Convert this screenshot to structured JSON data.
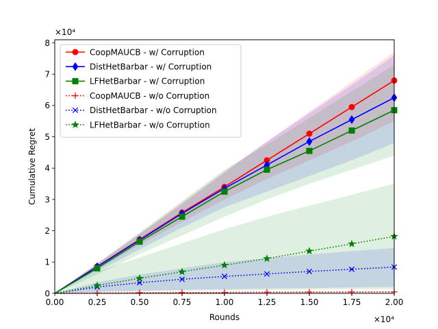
{
  "chart_data": {
    "type": "line",
    "xlabel": "Rounds",
    "ylabel": "Cumulative Regret",
    "x_offset_text": "×10⁴",
    "y_offset_text": "×10⁴",
    "xlim": [
      0,
      20000
    ],
    "ylim": [
      0,
      81000
    ],
    "x_ticks": [
      0,
      2500,
      5000,
      7500,
      10000,
      12500,
      15000,
      17500,
      20000
    ],
    "x_tick_labels": [
      "0.00",
      "0.25",
      "0.50",
      "0.75",
      "1.00",
      "1.25",
      "1.50",
      "1.75",
      "2.00"
    ],
    "y_ticks": [
      0,
      10000,
      20000,
      30000,
      40000,
      50000,
      60000,
      70000,
      80000
    ],
    "y_tick_labels": [
      "0",
      "1",
      "2",
      "3",
      "4",
      "5",
      "6",
      "7",
      "8"
    ],
    "grid": false,
    "legend_position": "top-left",
    "x": [
      0,
      2500,
      5000,
      7500,
      10000,
      12500,
      15000,
      17500,
      20000
    ],
    "series": [
      {
        "name": "CoopMAUCB - w/ Corruption",
        "color": "#ff0000",
        "linestyle": "solid",
        "marker": "circle",
        "values": [
          0,
          8600,
          17200,
          25800,
          34000,
          42500,
          51000,
          59500,
          68000
        ],
        "lower": [
          0,
          7600,
          15500,
          22800,
          30000,
          36500,
          42500,
          48500,
          55000
        ],
        "upper": [
          0,
          9500,
          19000,
          29000,
          39000,
          48500,
          58000,
          67500,
          77000
        ]
      },
      {
        "name": "DistHetBarbar - w/ Corruption",
        "color": "#0000ff",
        "linestyle": "solid",
        "marker": "diamond",
        "values": [
          0,
          8500,
          17000,
          25500,
          33500,
          41000,
          48500,
          55500,
          62500
        ],
        "lower": [
          0,
          7000,
          14000,
          21000,
          27500,
          32500,
          37500,
          42500,
          48000
        ],
        "upper": [
          0,
          9500,
          19000,
          28500,
          38500,
          48500,
          57500,
          66500,
          76000
        ]
      },
      {
        "name": "LFHetBarbar - w/ Corruption",
        "color": "#008000",
        "linestyle": "solid",
        "marker": "square",
        "values": [
          0,
          8000,
          16500,
          24500,
          32500,
          39500,
          45500,
          52000,
          58500
        ],
        "lower": [
          0,
          6000,
          12500,
          18500,
          24500,
          30000,
          35000,
          39500,
          44000
        ],
        "upper": [
          0,
          9500,
          19500,
          29500,
          39500,
          47500,
          56000,
          64500,
          73000
        ]
      },
      {
        "name": "CoopMAUCB - w/o Corruption",
        "color": "#ff0000",
        "linestyle": "dotted",
        "marker": "plus",
        "values": [
          0,
          100,
          200,
          250,
          300,
          350,
          400,
          420,
          450
        ],
        "lower": [
          0,
          50,
          100,
          150,
          200,
          250,
          280,
          300,
          320
        ],
        "upper": [
          0,
          200,
          300,
          400,
          450,
          500,
          550,
          600,
          650
        ]
      },
      {
        "name": "DistHetBarbar - w/o Corruption",
        "color": "#0000ff",
        "linestyle": "dotted",
        "marker": "x",
        "values": [
          0,
          2000,
          3400,
          4500,
          5400,
          6200,
          7000,
          7700,
          8400
        ],
        "lower": [
          0,
          400,
          800,
          1100,
          1300,
          1500,
          1700,
          1900,
          2100
        ],
        "upper": [
          0,
          3500,
          6000,
          8000,
          10000,
          11200,
          12400,
          13500,
          14500
        ]
      },
      {
        "name": "LFHetBarbar - w/o Corruption",
        "color": "#008000",
        "linestyle": "dotted",
        "marker": "star",
        "values": [
          0,
          2500,
          4800,
          6900,
          9000,
          11100,
          13500,
          15800,
          18200
        ],
        "lower": [
          0,
          500,
          700,
          900,
          1000,
          1100,
          1200,
          1300,
          1400
        ],
        "upper": [
          0,
          7000,
          11500,
          16000,
          20500,
          24500,
          28000,
          31500,
          35000
        ]
      }
    ]
  }
}
